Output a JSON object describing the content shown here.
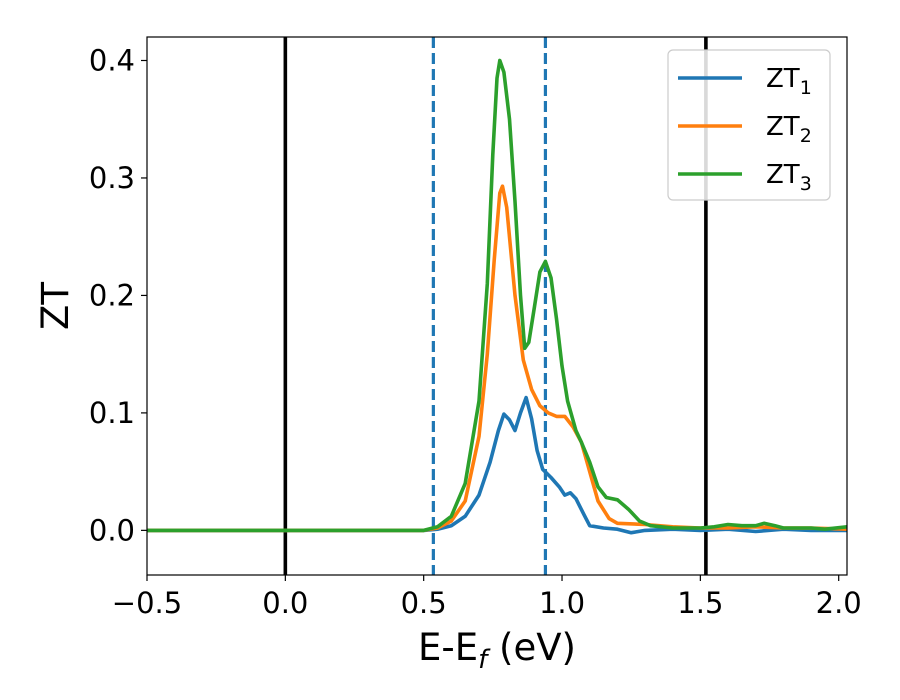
{
  "chart_data": {
    "type": "line",
    "title": "",
    "xlabel": {
      "base": "E-E",
      "sub": "f",
      "suffix": " (eV)"
    },
    "ylabel": "ZT",
    "xlim": [
      -0.5,
      2.03
    ],
    "ylim": [
      -0.038,
      0.42
    ],
    "xticks": [
      -0.5,
      0.0,
      0.5,
      1.0,
      1.5,
      2.0
    ],
    "xtick_labels": [
      "−0.5",
      "0.0",
      "0.5",
      "1.0",
      "1.5",
      "2.0"
    ],
    "yticks": [
      0.0,
      0.1,
      0.2,
      0.3,
      0.4
    ],
    "ytick_labels": [
      "0.0",
      "0.1",
      "0.2",
      "0.3",
      "0.4"
    ],
    "grid": false,
    "legend_position": "top-right",
    "vertical_lines": [
      {
        "x": 0.0,
        "style": "solid",
        "color": "#000000"
      },
      {
        "x": 1.52,
        "style": "solid",
        "color": "#000000"
      },
      {
        "x": 0.535,
        "style": "dashed",
        "color": "#1f77b4"
      },
      {
        "x": 0.94,
        "style": "dashed",
        "color": "#1f77b4"
      }
    ],
    "series": [
      {
        "name": "ZT",
        "sub": "1",
        "color": "#1f77b4",
        "points": [
          [
            -0.5,
            0
          ],
          [
            0.4,
            0
          ],
          [
            0.5,
            0
          ],
          [
            0.55,
            0.001
          ],
          [
            0.6,
            0.004
          ],
          [
            0.65,
            0.012
          ],
          [
            0.7,
            0.03
          ],
          [
            0.74,
            0.058
          ],
          [
            0.77,
            0.085
          ],
          [
            0.79,
            0.099
          ],
          [
            0.81,
            0.094
          ],
          [
            0.83,
            0.085
          ],
          [
            0.85,
            0.1
          ],
          [
            0.87,
            0.113
          ],
          [
            0.89,
            0.095
          ],
          [
            0.91,
            0.068
          ],
          [
            0.93,
            0.052
          ],
          [
            0.96,
            0.045
          ],
          [
            0.99,
            0.037
          ],
          [
            1.01,
            0.03
          ],
          [
            1.03,
            0.032
          ],
          [
            1.05,
            0.027
          ],
          [
            1.08,
            0.013
          ],
          [
            1.1,
            0.004
          ],
          [
            1.15,
            0.002
          ],
          [
            1.2,
            0.001
          ],
          [
            1.25,
            -0.002
          ],
          [
            1.3,
            0
          ],
          [
            1.4,
            0.001
          ],
          [
            1.5,
            0
          ],
          [
            1.6,
            0.001
          ],
          [
            1.7,
            -0.001
          ],
          [
            1.8,
            0.001
          ],
          [
            1.9,
            0
          ],
          [
            2.03,
            0
          ]
        ]
      },
      {
        "name": "ZT",
        "sub": "2",
        "color": "#ff7f0e",
        "points": [
          [
            -0.5,
            0
          ],
          [
            0.4,
            0
          ],
          [
            0.5,
            0
          ],
          [
            0.55,
            0.002
          ],
          [
            0.6,
            0.008
          ],
          [
            0.65,
            0.025
          ],
          [
            0.7,
            0.08
          ],
          [
            0.73,
            0.15
          ],
          [
            0.755,
            0.23
          ],
          [
            0.775,
            0.287
          ],
          [
            0.785,
            0.293
          ],
          [
            0.8,
            0.275
          ],
          [
            0.83,
            0.2
          ],
          [
            0.86,
            0.145
          ],
          [
            0.89,
            0.12
          ],
          [
            0.92,
            0.106
          ],
          [
            0.95,
            0.1
          ],
          [
            0.98,
            0.097
          ],
          [
            1.01,
            0.097
          ],
          [
            1.04,
            0.088
          ],
          [
            1.07,
            0.075
          ],
          [
            1.1,
            0.05
          ],
          [
            1.13,
            0.025
          ],
          [
            1.17,
            0.01
          ],
          [
            1.2,
            0.006
          ],
          [
            1.3,
            0.005
          ],
          [
            1.4,
            0.003
          ],
          [
            1.5,
            0.002
          ],
          [
            1.6,
            0.002
          ],
          [
            1.7,
            0.003
          ],
          [
            1.8,
            0.002
          ],
          [
            1.9,
            0.002
          ],
          [
            2.03,
            0.001
          ]
        ]
      },
      {
        "name": "ZT",
        "sub": "3",
        "color": "#2ca02c",
        "points": [
          [
            -0.5,
            0
          ],
          [
            0.4,
            0
          ],
          [
            0.5,
            0
          ],
          [
            0.55,
            0.003
          ],
          [
            0.6,
            0.012
          ],
          [
            0.65,
            0.04
          ],
          [
            0.7,
            0.11
          ],
          [
            0.73,
            0.21
          ],
          [
            0.75,
            0.32
          ],
          [
            0.765,
            0.385
          ],
          [
            0.775,
            0.4
          ],
          [
            0.79,
            0.39
          ],
          [
            0.81,
            0.35
          ],
          [
            0.83,
            0.28
          ],
          [
            0.85,
            0.2
          ],
          [
            0.865,
            0.155
          ],
          [
            0.88,
            0.16
          ],
          [
            0.9,
            0.19
          ],
          [
            0.92,
            0.22
          ],
          [
            0.94,
            0.229
          ],
          [
            0.96,
            0.215
          ],
          [
            0.98,
            0.18
          ],
          [
            1.0,
            0.14
          ],
          [
            1.02,
            0.11
          ],
          [
            1.05,
            0.085
          ],
          [
            1.07,
            0.075
          ],
          [
            1.1,
            0.058
          ],
          [
            1.13,
            0.037
          ],
          [
            1.16,
            0.028
          ],
          [
            1.2,
            0.026
          ],
          [
            1.24,
            0.018
          ],
          [
            1.28,
            0.008
          ],
          [
            1.32,
            0.004
          ],
          [
            1.4,
            0.002
          ],
          [
            1.5,
            0.002
          ],
          [
            1.55,
            0.003
          ],
          [
            1.6,
            0.005
          ],
          [
            1.65,
            0.004
          ],
          [
            1.7,
            0.004
          ],
          [
            1.73,
            0.006
          ],
          [
            1.77,
            0.004
          ],
          [
            1.8,
            0.002
          ],
          [
            1.9,
            0.002
          ],
          [
            1.95,
            0.001
          ],
          [
            2.03,
            0.003
          ]
        ]
      }
    ]
  }
}
